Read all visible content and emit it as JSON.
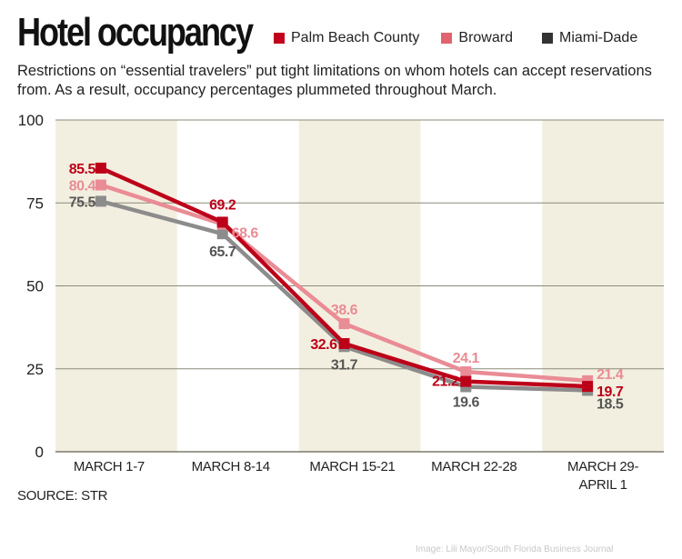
{
  "header": {
    "title": "Hotel occupancy",
    "subtitle": "Restrictions on “essential travelers” put tight limitations on whom hotels can accept reservations from. As a result, occupancy percentages plummeted throughout March."
  },
  "legend": [
    {
      "name": "Palm Beach County",
      "color": "#c0001c"
    },
    {
      "name": "Broward",
      "color": "#e1636f"
    },
    {
      "name": "Miami-Dade",
      "color": "#333333"
    }
  ],
  "footer": {
    "source": "SOURCE: STR",
    "credit": "Image: Lili Mayor/South Florida Business Journal"
  },
  "chart_data": {
    "type": "line",
    "title": "Hotel occupancy",
    "xlabel": "",
    "ylabel": "",
    "categories": [
      "MARCH 1-7",
      "MARCH 8-14",
      "MARCH 15-21",
      "MARCH 22-28",
      "MARCH 29-\nAPRIL 1"
    ],
    "ylim": [
      0,
      100
    ],
    "yticks": [
      0,
      25,
      50,
      75,
      100
    ],
    "grid": true,
    "legend_position": "top-right",
    "series": [
      {
        "name": "Miami-Dade",
        "values": [
          75.5,
          65.7,
          31.7,
          19.6,
          18.5
        ],
        "line_color": "#8c8c8c",
        "label_color": "#555555"
      },
      {
        "name": "Broward",
        "values": [
          80.4,
          68.6,
          38.6,
          24.1,
          21.4
        ],
        "line_color": "#e98c95",
        "label_color": "#e98c95"
      },
      {
        "name": "Palm Beach County",
        "values": [
          85.5,
          69.2,
          32.6,
          21.2,
          19.7
        ],
        "line_color": "#bd0019",
        "label_color": "#bd0019"
      }
    ],
    "band_color": "#f3efe0",
    "shaded_categories": [
      0,
      2,
      4
    ]
  }
}
